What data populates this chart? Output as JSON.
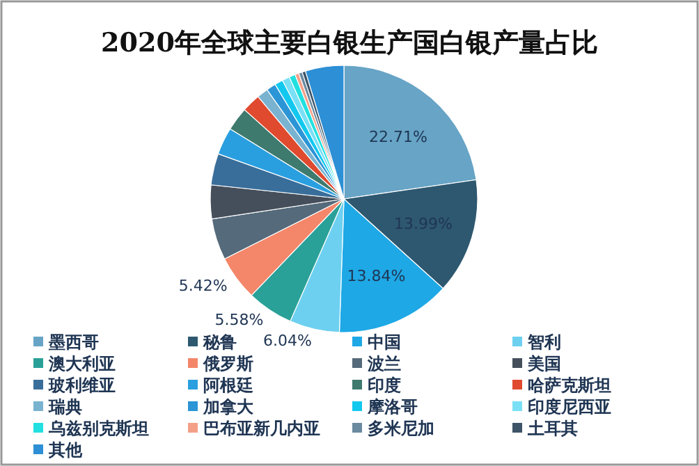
{
  "chart_data": {
    "type": "pie",
    "title": "2020年全球主要白银生产国白银产量占比",
    "categories": [
      "墨西哥",
      "秘鲁",
      "中国",
      "智利",
      "澳大利亚",
      "俄罗斯",
      "波兰",
      "美国",
      "玻利维亚",
      "阿根廷",
      "印度",
      "哈萨克斯坦",
      "瑞典",
      "加拿大",
      "摩洛哥",
      "印度尼西亚",
      "乌兹别克斯坦",
      "巴布亚新几内亚",
      "多米尼加",
      "土耳其",
      "其他"
    ],
    "values": [
      22.71,
      13.99,
      13.84,
      6.04,
      5.58,
      5.42,
      5.02,
      4.08,
      3.81,
      3.3,
      2.86,
      2.24,
      1.36,
      1.15,
      1.0,
      0.9,
      0.75,
      0.46,
      0.43,
      0.41,
      4.65
    ],
    "value_labels": [
      "22.71%",
      "13.99%",
      "13.84%",
      "6.04%",
      "5.58%",
      "5.42%",
      null,
      null,
      null,
      null,
      null,
      null,
      null,
      null,
      null,
      null,
      null,
      null,
      null,
      null,
      null
    ],
    "colors": [
      "#67a4c6",
      "#2e5870",
      "#1ea8e6",
      "#6dd0f0",
      "#2aa198",
      "#f4866a",
      "#556a7a",
      "#454f5c",
      "#3a6e9a",
      "#2a9fe0",
      "#3e7a6e",
      "#e04a2e",
      "#7ab3cf",
      "#2b95d6",
      "#12c8ef",
      "#7ae0f5",
      "#22e0e0",
      "#f4a088",
      "#6a8aa0",
      "#3e5468",
      "#2d8fd5"
    ],
    "legend": "bottom"
  }
}
